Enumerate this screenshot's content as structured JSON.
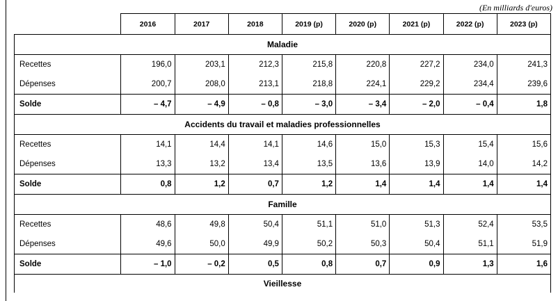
{
  "unit_note": "(En milliards d'euros)",
  "years": [
    "2016",
    "2017",
    "2018",
    "2019 (p)",
    "2020 (p)",
    "2021 (p)",
    "2022 (p)",
    "2023 (p)"
  ],
  "sections": [
    {
      "title": "Maladie",
      "rows": [
        {
          "label": "Recettes",
          "values": [
            "196,0",
            "203,1",
            "212,3",
            "215,8",
            "220,8",
            "227,2",
            "234,0",
            "241,3"
          ]
        },
        {
          "label": "Dépenses",
          "values": [
            "200,7",
            "208,0",
            "213,1",
            "218,8",
            "224,1",
            "229,2",
            "234,4",
            "239,6"
          ]
        },
        {
          "label": "Solde",
          "values": [
            "– 4,7",
            "– 4,9",
            "– 0,8",
            "– 3,0",
            "– 3,4",
            "– 2,0",
            "– 0,4",
            "1,8"
          ]
        }
      ]
    },
    {
      "title": "Accidents du travail et maladies professionnelles",
      "rows": [
        {
          "label": "Recettes",
          "values": [
            "14,1",
            "14,4",
            "14,1",
            "14,6",
            "15,0",
            "15,3",
            "15,4",
            "15,6"
          ]
        },
        {
          "label": "Dépenses",
          "values": [
            "13,3",
            "13,2",
            "13,4",
            "13,5",
            "13,6",
            "13,9",
            "14,0",
            "14,2"
          ]
        },
        {
          "label": "Solde",
          "values": [
            "0,8",
            "1,2",
            "0,7",
            "1,2",
            "1,4",
            "1,4",
            "1,4",
            "1,4"
          ]
        }
      ]
    },
    {
      "title": "Famille",
      "rows": [
        {
          "label": "Recettes",
          "values": [
            "48,6",
            "49,8",
            "50,4",
            "51,1",
            "51,0",
            "51,3",
            "52,4",
            "53,5"
          ]
        },
        {
          "label": "Dépenses",
          "values": [
            "49,6",
            "50,0",
            "49,9",
            "50,2",
            "50,3",
            "50,4",
            "51,1",
            "51,9"
          ]
        },
        {
          "label": "Solde",
          "values": [
            "– 1,0",
            "– 0,2",
            "0,5",
            "0,8",
            "0,7",
            "0,9",
            "1,3",
            "1,6"
          ]
        }
      ]
    },
    {
      "title": "Vieillesse",
      "rows": []
    }
  ]
}
